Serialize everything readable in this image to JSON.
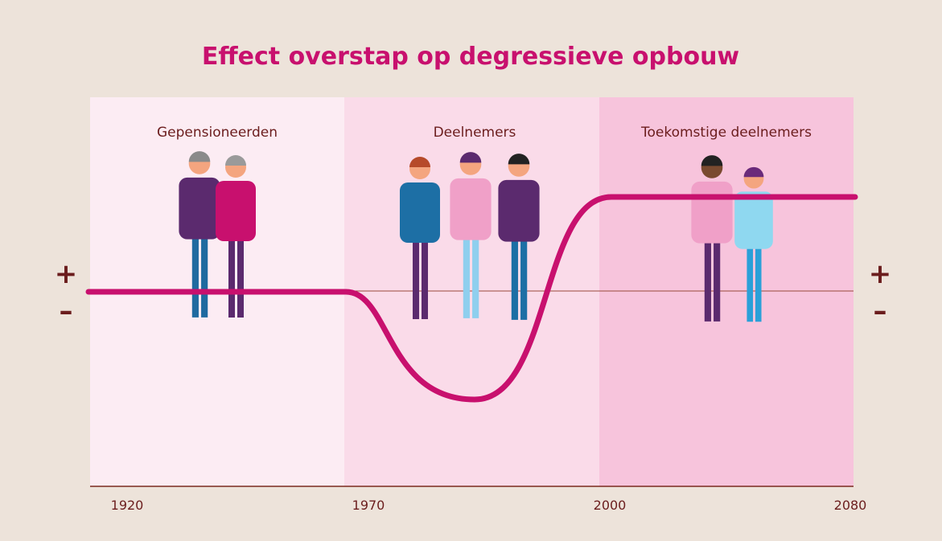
{
  "title": "Effect overstap op degressieve opbouw",
  "sections": [
    {
      "label": "Gepensioneerden"
    },
    {
      "label": "Deelnemers"
    },
    {
      "label": "Toekomstige deelnemers"
    }
  ],
  "axis": {
    "labels": [
      "1920",
      "1970",
      "2000",
      "2080"
    ]
  },
  "signs": {
    "left": {
      "plus": "+",
      "minus": "–"
    },
    "right": {
      "plus": "+",
      "minus": "–"
    }
  }
}
